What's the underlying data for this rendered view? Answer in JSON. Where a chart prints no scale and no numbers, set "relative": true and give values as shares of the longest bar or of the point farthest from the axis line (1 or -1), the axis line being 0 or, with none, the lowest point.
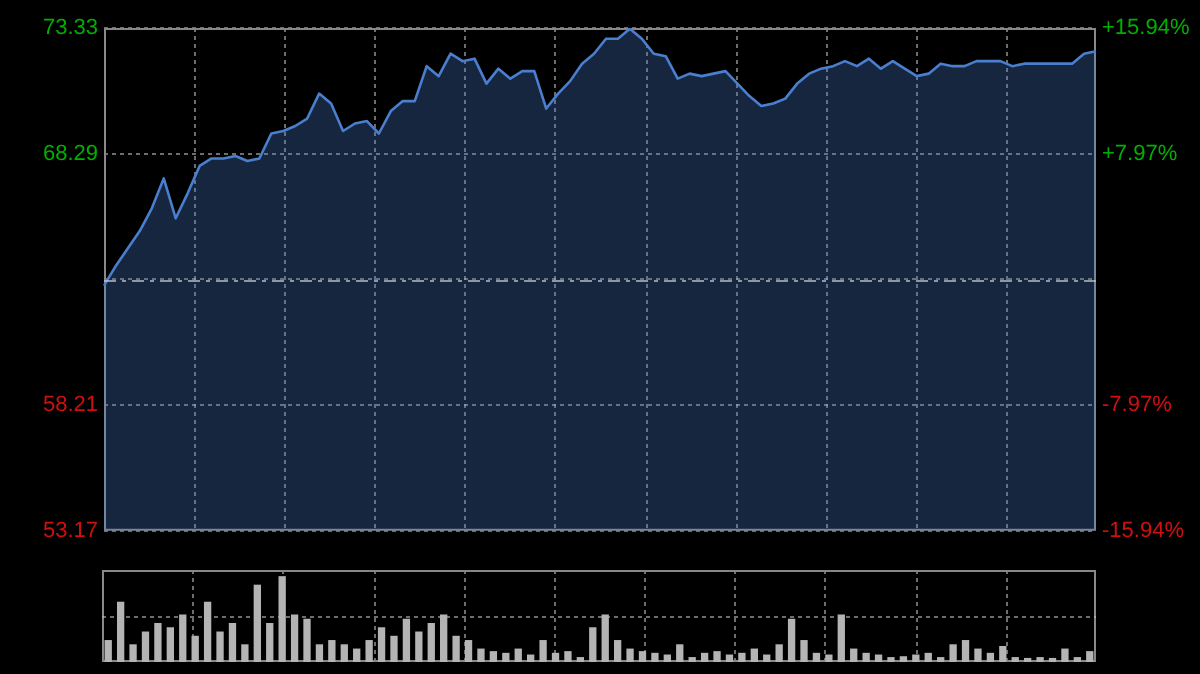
{
  "chart_data": [
    {
      "type": "area",
      "categories": [
        null,
        null,
        null,
        null,
        null,
        null,
        null,
        null,
        null,
        null,
        null,
        null,
        null,
        null,
        null,
        null,
        null,
        null,
        null,
        null,
        null,
        null,
        null,
        null,
        null,
        null,
        null,
        null,
        null,
        null,
        null,
        null,
        null,
        null,
        null,
        null,
        null,
        null,
        null,
        null,
        null,
        null,
        null,
        null,
        null,
        null,
        null,
        null,
        null,
        null,
        null,
        null,
        null,
        null,
        null,
        null,
        null,
        null,
        null,
        null,
        null,
        null,
        null,
        null,
        null,
        null,
        null,
        null,
        null,
        null,
        null,
        null,
        null,
        null,
        null,
        null,
        null,
        null,
        null,
        null,
        null,
        null,
        null,
        null
      ],
      "series": [
        {
          "color": "#4a7fd0",
          "values": [
            63.0,
            63.8,
            64.5,
            65.2,
            66.1,
            67.3,
            65.7,
            66.7,
            67.8,
            68.1,
            68.1,
            68.2,
            68.0,
            68.1,
            69.1,
            69.2,
            69.4,
            69.7,
            70.7,
            70.3,
            69.2,
            69.5,
            69.6,
            69.1,
            70.0,
            70.4,
            70.4,
            71.8,
            71.4,
            72.3,
            72.0,
            72.1,
            71.1,
            71.7,
            71.3,
            71.6,
            71.6,
            70.1,
            70.7,
            71.2,
            71.9,
            72.3,
            72.9,
            72.9,
            73.3,
            72.9,
            72.3,
            72.2,
            71.3,
            71.5,
            71.4,
            71.5,
            71.6,
            71.1,
            70.6,
            70.2,
            70.3,
            70.5,
            71.1,
            71.5,
            71.7,
            71.8,
            72.0,
            71.8,
            72.1,
            71.7,
            72.0,
            71.7,
            71.4,
            71.5,
            71.9,
            71.8,
            71.8,
            72.0,
            72.0,
            72.0,
            71.8,
            71.9,
            71.9,
            71.9,
            71.9,
            71.9,
            72.3,
            72.4
          ]
        }
      ],
      "ylim": [
        53.17,
        73.33
      ],
      "yticks": [
        73.33,
        68.29,
        {
          "value": 63.25,
          "label": null
        },
        58.21,
        53.17
      ],
      "y2lim": [
        -15.94,
        15.94
      ],
      "y2ticks": [
        {
          "value": 15.94,
          "label": "+15.94%"
        },
        {
          "value": 7.97,
          "label": "+7.97%"
        },
        {
          "value": 0,
          "label": null
        },
        {
          "value": -7.97,
          "label": "-7.97%"
        },
        {
          "value": -15.94,
          "label": "-15.94%"
        }
      ],
      "ref_lines": [
        {
          "axis": "y",
          "value": 63.25,
          "line_style": "dashed"
        }
      ],
      "grid": true,
      "tick_labels": "y"
    },
    {
      "type": "bar",
      "relative": true,
      "grid": true,
      "color": "#b4b4b4",
      "categories": [
        null,
        null,
        null,
        null,
        null,
        null,
        null,
        null,
        null,
        null,
        null,
        null,
        null,
        null,
        null,
        null,
        null,
        null,
        null,
        null,
        null,
        null,
        null,
        null,
        null,
        null,
        null,
        null,
        null,
        null,
        null,
        null,
        null,
        null,
        null,
        null,
        null,
        null,
        null,
        null,
        null,
        null,
        null,
        null,
        null,
        null,
        null,
        null,
        null,
        null,
        null,
        null,
        null,
        null,
        null,
        null,
        null,
        null,
        null,
        null,
        null,
        null,
        null,
        null,
        null,
        null,
        null,
        null,
        null,
        null,
        null,
        null,
        null,
        null,
        null,
        null,
        null,
        null,
        null,
        null
      ],
      "values": [
        0.25,
        0.7,
        0.2,
        0.35,
        0.45,
        0.4,
        0.55,
        0.3,
        0.7,
        0.35,
        0.45,
        0.2,
        0.9,
        0.45,
        1,
        0.55,
        0.5,
        0.2,
        0.25,
        0.2,
        0.15,
        0.25,
        0.4,
        0.3,
        0.5,
        0.35,
        0.45,
        0.55,
        0.3,
        0.25,
        0.15,
        0.12,
        0.1,
        0.15,
        0.08,
        0.25,
        0.1,
        0.12,
        0.05,
        0.4,
        0.55,
        0.25,
        0.15,
        0.12,
        0.1,
        0.08,
        0.2,
        0.05,
        0.1,
        0.12,
        0.08,
        0.1,
        0.15,
        0.08,
        0.2,
        0.5,
        0.25,
        0.1,
        0.08,
        0.55,
        0.15,
        0.1,
        0.08,
        0.05,
        0.06,
        0.08,
        0.1,
        0.05,
        0.2,
        0.25,
        0.15,
        0.1,
        0.18,
        0.05,
        0.04,
        0.05,
        0.04,
        0.15,
        0.05,
        0.12
      ]
    }
  ]
}
